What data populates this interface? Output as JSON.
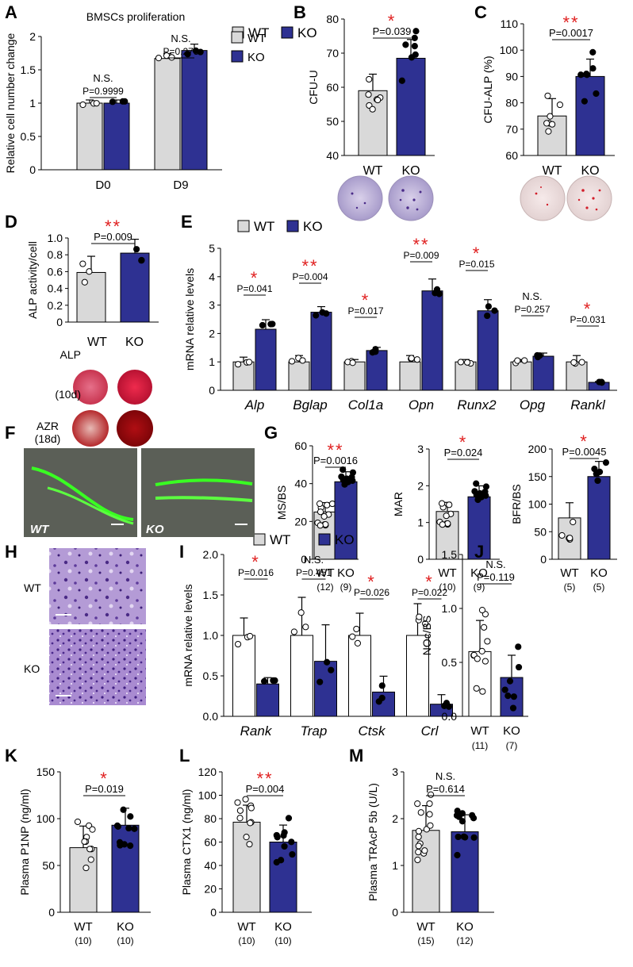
{
  "colors": {
    "wt": "#d9d9d9",
    "ko": "#2e3192",
    "star": "#e02020",
    "white": "#ffffff"
  },
  "panels": {
    "a": "A",
    "b": "B",
    "c": "C",
    "d": "D",
    "e": "E",
    "f": "F",
    "g": "G",
    "h": "H",
    "i": "I",
    "j": "J",
    "k": "K",
    "l": "L",
    "m": "M"
  },
  "images": {
    "ptitle": "",
    "dish_wt": "WT",
    "dish_ko": "KO",
    "alp": "ALP",
    "alp_d": "(10d)",
    "azr": "AZR",
    "azr_d": "(18d)",
    "f_wt": "WT",
    "f_ko": "KO",
    "h_wt": "WT",
    "h_ko": "KO"
  },
  "chart_data": [
    {
      "id": "A",
      "type": "bar",
      "title": "BMSCs proliferation",
      "ylabel": "Relative cell number change",
      "ylim": [
        0,
        2
      ],
      "yticks": [
        "0",
        "0.5",
        "1",
        "1.5",
        "2"
      ],
      "categories": [
        "D0",
        "D9"
      ],
      "series": [
        {
          "name": "WT",
          "values": [
            1.0,
            1.67
          ]
        },
        {
          "name": "KO",
          "values": [
            1.0,
            1.79
          ]
        }
      ],
      "annotations": [
        {
          "sig": "N.S.",
          "p": "P=0.9999"
        },
        {
          "sig": "N.S.",
          "p": "P=0.273"
        }
      ]
    },
    {
      "id": "B",
      "type": "bar",
      "ylabel": "CFU-U",
      "ylim": [
        40,
        80
      ],
      "yticks": [
        "40",
        "50",
        "60",
        "70",
        "80"
      ],
      "categories": [
        "WT",
        "KO"
      ],
      "values": [
        59,
        68.5
      ],
      "annotations": [
        {
          "sig": "*",
          "p": "P=0.039"
        }
      ]
    },
    {
      "id": "C",
      "type": "bar",
      "ylabel": "CFU-ALP (%)",
      "ylim": [
        60,
        110
      ],
      "yticks": [
        "60",
        "70",
        "80",
        "90",
        "100",
        "110"
      ],
      "categories": [
        "WT",
        "KO"
      ],
      "values": [
        75,
        90
      ],
      "annotations": [
        {
          "sig": "**",
          "p": "P=0.0017"
        }
      ]
    },
    {
      "id": "D",
      "type": "bar",
      "ylabel": "ALP activity/cell",
      "ylim": [
        0,
        1.0
      ],
      "yticks": [
        "0",
        "0.2",
        "0.4",
        "0.6",
        "0.8",
        "1.0"
      ],
      "categories": [
        "WT",
        "KO"
      ],
      "values": [
        0.59,
        0.82
      ],
      "annotations": [
        {
          "sig": "**",
          "p": "P=0.009"
        }
      ]
    },
    {
      "id": "E",
      "type": "bar",
      "ylabel": "mRNA relative levels",
      "ylim": [
        0,
        5
      ],
      "yticks": [
        "0",
        "1",
        "2",
        "3",
        "4",
        "5"
      ],
      "categories": [
        "Alp",
        "Bglap",
        "Col1a",
        "Opn",
        "Runx2",
        "Opg",
        "Rankl"
      ],
      "series": [
        {
          "name": "WT",
          "values": [
            1,
            1,
            1,
            1,
            1,
            1,
            1
          ]
        },
        {
          "name": "KO",
          "values": [
            2.15,
            2.75,
            1.4,
            3.5,
            2.8,
            1.2,
            0.28
          ]
        }
      ],
      "annotations": [
        {
          "sig": "*",
          "p": "P=0.041"
        },
        {
          "sig": "**",
          "p": "P=0.004"
        },
        {
          "sig": "*",
          "p": "P=0.017"
        },
        {
          "sig": "**",
          "p": "P=0.009"
        },
        {
          "sig": "*",
          "p": "P=0.015"
        },
        {
          "sig": "N.S.",
          "p": "P=0.257"
        },
        {
          "sig": "*",
          "p": "P=0.031"
        }
      ]
    },
    {
      "id": "G1",
      "type": "bar",
      "ylabel": "MS/BS",
      "ylim": [
        0,
        60
      ],
      "yticks": [
        "0",
        "20",
        "40",
        "60"
      ],
      "categories": [
        "WT",
        "KO"
      ],
      "n": [
        "(12)",
        "(9)"
      ],
      "values": [
        25,
        41
      ],
      "annotations": [
        {
          "sig": "**",
          "p": "P=0.0016"
        }
      ]
    },
    {
      "id": "G2",
      "type": "bar",
      "ylabel": "MAR",
      "ylim": [
        0,
        3
      ],
      "yticks": [
        "0",
        "1",
        "2",
        "3"
      ],
      "categories": [
        "WT",
        "KO"
      ],
      "n": [
        "(10)",
        "(9)"
      ],
      "values": [
        1.3,
        1.7
      ],
      "annotations": [
        {
          "sig": "*",
          "p": "P=0.024"
        }
      ]
    },
    {
      "id": "G3",
      "type": "bar",
      "ylabel": "BFR/BS",
      "ylim": [
        0,
        200
      ],
      "yticks": [
        "0",
        "50",
        "100",
        "150",
        "200"
      ],
      "categories": [
        "WT",
        "KO"
      ],
      "n": [
        "(5)",
        "(5)"
      ],
      "values": [
        75,
        150
      ],
      "annotations": [
        {
          "sig": "*",
          "p": "P=0.0045"
        }
      ]
    },
    {
      "id": "I",
      "type": "bar",
      "ylabel": "mRNA relative levels",
      "ylim": [
        0,
        2.0
      ],
      "yticks": [
        "0.0",
        "0.5",
        "1.0",
        "1.5",
        "2.0"
      ],
      "categories": [
        "Rank",
        "Trap",
        "Ctsk",
        "Crl"
      ],
      "series": [
        {
          "name": "WT",
          "values": [
            1,
            1,
            1,
            1
          ]
        },
        {
          "name": "KO",
          "values": [
            0.4,
            0.68,
            0.3,
            0.15
          ]
        }
      ],
      "annotations": [
        {
          "sig": "*",
          "p": "P=0.016"
        },
        {
          "sig": "N.S.",
          "p": "P=0.451"
        },
        {
          "sig": "*",
          "p": "P=0.026"
        },
        {
          "sig": "*",
          "p": "P=0.022"
        }
      ]
    },
    {
      "id": "J",
      "type": "bar",
      "ylabel": "NOc/BS",
      "ylim": [
        0,
        1.5
      ],
      "yticks": [
        "0.0",
        "0.5",
        "1.0",
        "1.5"
      ],
      "categories": [
        "WT",
        "KO"
      ],
      "n": [
        "(11)",
        "(7)"
      ],
      "values": [
        0.6,
        0.36
      ],
      "annotations": [
        {
          "sig": "N.S.",
          "p": "P=0.119"
        }
      ]
    },
    {
      "id": "K",
      "type": "bar",
      "ylabel": "Plasma P1NP (ng/ml)",
      "ylim": [
        0,
        150
      ],
      "yticks": [
        "0",
        "50",
        "100",
        "150"
      ],
      "categories": [
        "WT",
        "KO"
      ],
      "n": [
        "(10)",
        "(10)"
      ],
      "values": [
        69,
        93
      ],
      "annotations": [
        {
          "sig": "*",
          "p": "P=0.019"
        }
      ]
    },
    {
      "id": "L",
      "type": "bar",
      "ylabel": "Plasma CTX1 (ng/ml)",
      "ylim": [
        0,
        120
      ],
      "yticks": [
        "0",
        "20",
        "40",
        "60",
        "80",
        "100",
        "120"
      ],
      "categories": [
        "WT",
        "KO"
      ],
      "n": [
        "(10)",
        "(10)"
      ],
      "values": [
        77,
        60
      ],
      "annotations": [
        {
          "sig": "**",
          "p": "P=0.004"
        }
      ]
    },
    {
      "id": "M",
      "type": "bar",
      "ylabel": "Plasma TRAcP 5b (U/L)",
      "ylim": [
        0,
        3
      ],
      "yticks": [
        "0",
        "1",
        "2",
        "3"
      ],
      "categories": [
        "WT",
        "KO"
      ],
      "n": [
        "(15)",
        "(12)"
      ],
      "values": [
        1.75,
        1.72
      ],
      "annotations": [
        {
          "sig": "N.S.",
          "p": "P=0.614"
        }
      ]
    }
  ]
}
